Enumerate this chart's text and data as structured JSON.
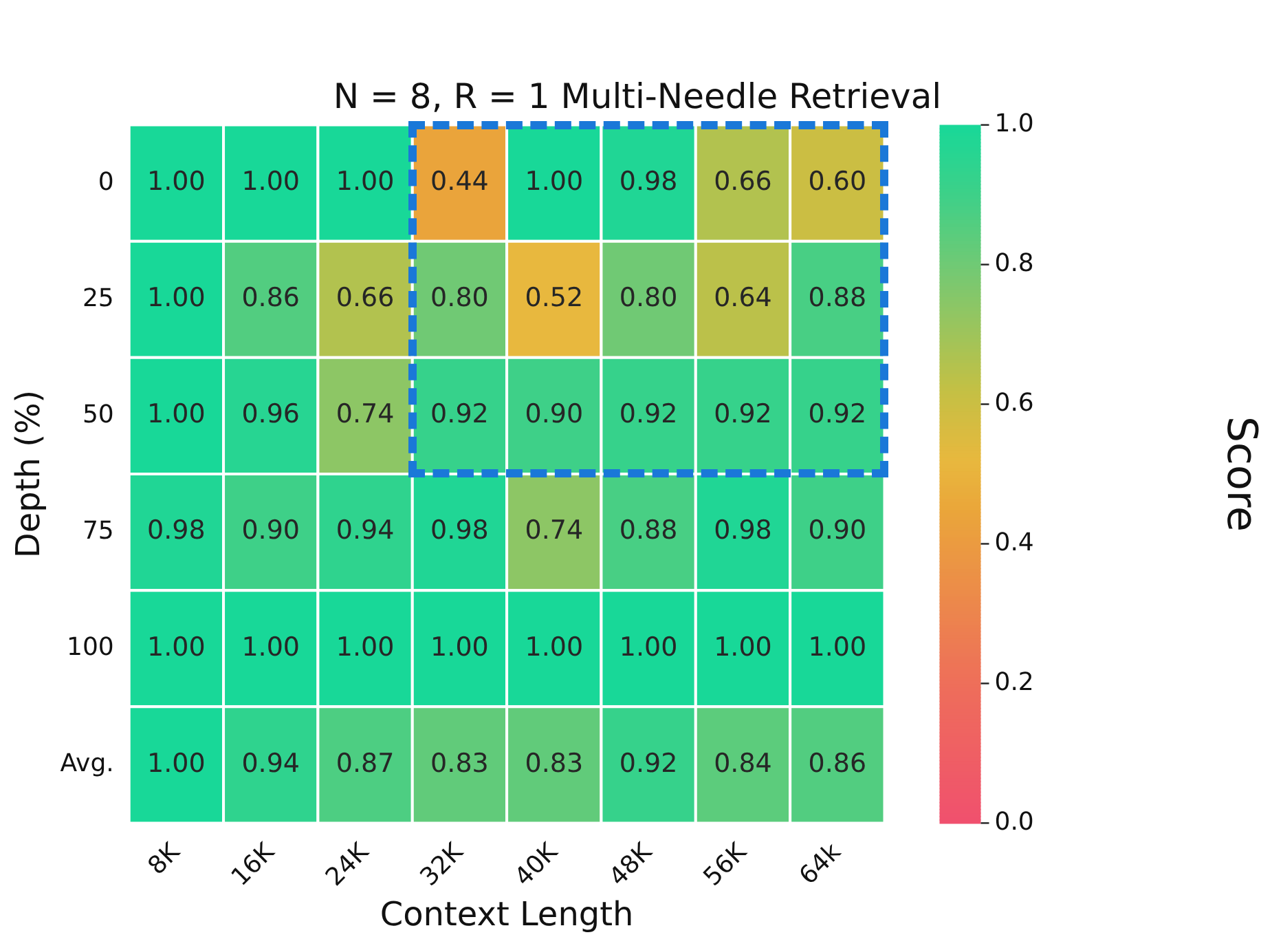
{
  "chart_data": {
    "type": "heatmap",
    "title": "N = 8, R = 1 Multi-Needle Retrieval",
    "xlabel": "Context Length",
    "ylabel": "Depth (%)",
    "clabel": "Score",
    "categories": [
      "8K",
      "16K",
      "24K",
      "32K",
      "40K",
      "48K",
      "56K",
      "64k"
    ],
    "y_categories": [
      "0",
      "25",
      "50",
      "75",
      "100",
      "Avg."
    ],
    "cells": [
      [
        1.0,
        1.0,
        1.0,
        0.44,
        1.0,
        0.98,
        0.66,
        0.6
      ],
      [
        1.0,
        0.86,
        0.66,
        0.8,
        0.52,
        0.8,
        0.64,
        0.88
      ],
      [
        1.0,
        0.96,
        0.74,
        0.92,
        0.9,
        0.92,
        0.92,
        0.92
      ],
      [
        0.98,
        0.9,
        0.94,
        0.98,
        0.74,
        0.88,
        0.98,
        0.9
      ],
      [
        1.0,
        1.0,
        1.0,
        1.0,
        1.0,
        1.0,
        1.0,
        1.0
      ],
      [
        1.0,
        0.94,
        0.87,
        0.83,
        0.83,
        0.92,
        0.84,
        0.86
      ]
    ],
    "cell_labels": [
      [
        "1.00",
        "1.00",
        "1.00",
        "0.44",
        "1.00",
        "0.98",
        "0.66",
        "0.60"
      ],
      [
        "1.00",
        "0.86",
        "0.66",
        "0.80",
        "0.52",
        "0.80",
        "0.64",
        "0.88"
      ],
      [
        "1.00",
        "0.96",
        "0.74",
        "0.92",
        "0.90",
        "0.92",
        "0.92",
        "0.92"
      ],
      [
        "0.98",
        "0.90",
        "0.94",
        "0.98",
        "0.74",
        "0.88",
        "0.98",
        "0.90"
      ],
      [
        "1.00",
        "1.00",
        "1.00",
        "1.00",
        "1.00",
        "1.00",
        "1.00",
        "1.00"
      ],
      [
        "1.00",
        "0.94",
        "0.87",
        "0.83",
        "0.83",
        "0.92",
        "0.84",
        "0.86"
      ]
    ],
    "clim": [
      0,
      1
    ],
    "cticks": [
      {
        "value": 0,
        "label": "0.0"
      },
      {
        "value": 0.2,
        "label": "0.2"
      },
      {
        "value": 0.4,
        "label": "0.4"
      },
      {
        "value": 0.6,
        "label": "0.6"
      },
      {
        "value": 0.8,
        "label": "0.8"
      },
      {
        "value": 1,
        "label": "1.0"
      }
    ]
  }
}
